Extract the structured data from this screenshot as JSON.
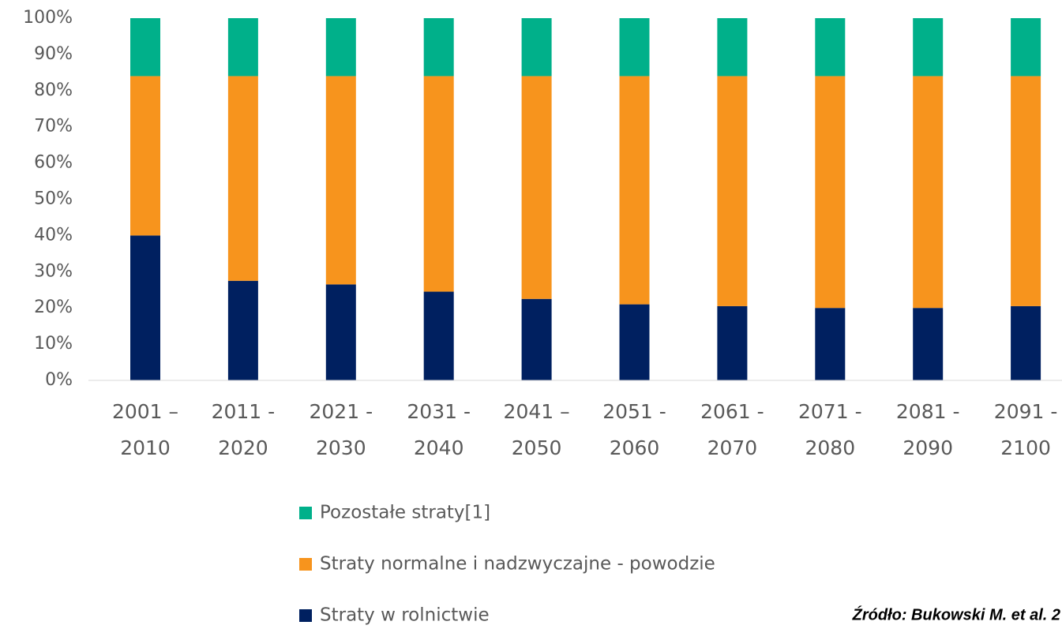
{
  "chart_data": {
    "type": "stacked_bar",
    "categories": [
      [
        "2001 –",
        "2010"
      ],
      [
        "2011 -",
        "2020"
      ],
      [
        "2021 -",
        "2030"
      ],
      [
        "2031 -",
        "2040"
      ],
      [
        "2041 –",
        "2050"
      ],
      [
        "2051 -",
        "2060"
      ],
      [
        "2061 -",
        "2070"
      ],
      [
        "2071 -",
        "2080"
      ],
      [
        "2081 -",
        "2090"
      ],
      [
        "2091 -",
        "2100"
      ]
    ],
    "series": [
      {
        "name": "Straty w rolnictwie",
        "color": "#002060",
        "values": [
          40,
          27.5,
          26.5,
          24.5,
          22.5,
          21,
          20.5,
          20,
          20,
          20.5
        ]
      },
      {
        "name": "Straty normalne i nadzwyczajne - powodzie",
        "color": "#f7941d",
        "values": [
          44,
          56.5,
          57.5,
          59.5,
          61.5,
          63,
          63.5,
          64,
          64,
          63.5
        ]
      },
      {
        "name": "Pozostałe straty[1]",
        "color": "#00b08a",
        "values": [
          16,
          16,
          16,
          16,
          16,
          16,
          16,
          16,
          16,
          16
        ]
      }
    ],
    "ylim": [
      0,
      100
    ],
    "yticks": [
      {
        "value": 0,
        "label": "0%"
      },
      {
        "value": 10,
        "label": "10%"
      },
      {
        "value": 20,
        "label": "20%"
      },
      {
        "value": 30,
        "label": "30%"
      },
      {
        "value": 40,
        "label": "40%"
      },
      {
        "value": 50,
        "label": "50%"
      },
      {
        "value": 60,
        "label": "60%"
      },
      {
        "value": 70,
        "label": "70%"
      },
      {
        "value": 80,
        "label": "80%"
      },
      {
        "value": 90,
        "label": "90%"
      },
      {
        "value": 100,
        "label": "100%"
      }
    ],
    "source": "Źródło: Bukowski M. et al. 2"
  }
}
